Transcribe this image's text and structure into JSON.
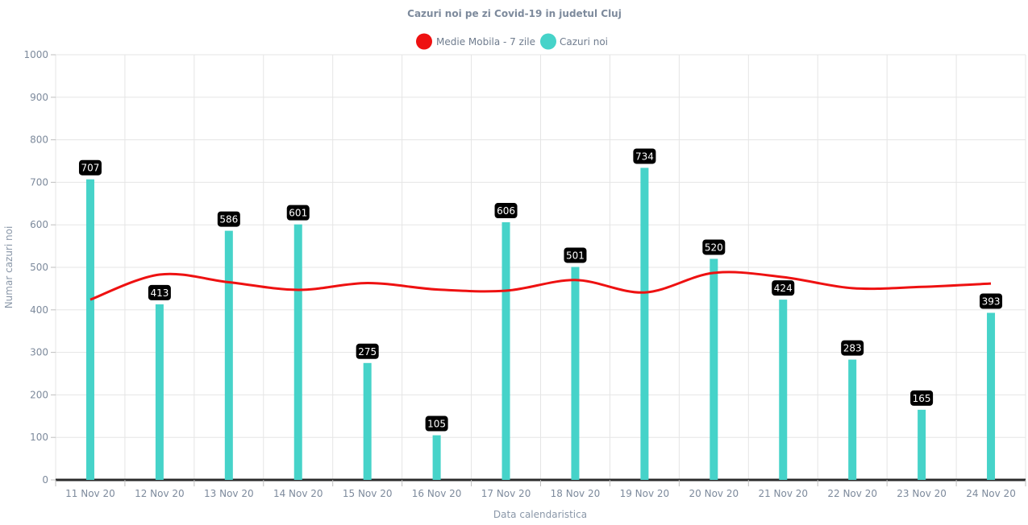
{
  "chart_data": {
    "type": "bar",
    "title": "Cazuri noi pe zi Covid-19 in judetul Cluj",
    "xlabel": "Data calendaristica",
    "ylabel": "Numar cazuri noi",
    "ylim": [
      0,
      1000
    ],
    "yticks": [
      0,
      100,
      200,
      300,
      400,
      500,
      600,
      700,
      800,
      900,
      1000
    ],
    "grid": true,
    "legend_position": "top-center",
    "categories": [
      "11 Nov 20",
      "12 Nov 20",
      "13 Nov 20",
      "14 Nov 20",
      "15 Nov 20",
      "16 Nov 20",
      "17 Nov 20",
      "18 Nov 20",
      "19 Nov 20",
      "20 Nov 20",
      "21 Nov 20",
      "22 Nov 20",
      "23 Nov 20",
      "24 Nov 20"
    ],
    "series": [
      {
        "name": "Medie Mobila - 7 zile",
        "type": "line",
        "color": "#ee1111",
        "values": [
          424,
          483,
          465,
          447,
          463,
          448,
          445,
          470,
          441,
          487,
          477,
          451,
          454,
          462
        ]
      },
      {
        "name": "Cazuri noi",
        "type": "bar",
        "color": "#46d3c9",
        "values": [
          707,
          413,
          586,
          601,
          275,
          105,
          606,
          501,
          734,
          520,
          424,
          283,
          165,
          393
        ],
        "data_labels": [
          "707",
          "413",
          "586",
          "601",
          "275",
          "105",
          "606",
          "501",
          "734",
          "520",
          "424",
          "283",
          "165",
          "393"
        ]
      }
    ]
  }
}
